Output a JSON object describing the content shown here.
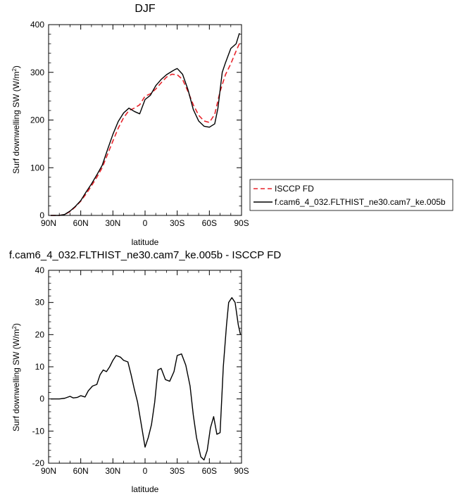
{
  "chart_data": [
    {
      "type": "line",
      "title": "DJF",
      "xlabel": "latitude",
      "ylabel": "Surf downwelling SW (W/m",
      "ylabel_sup": "2",
      "ylabel_close": ")",
      "xlim": [
        90,
        -90
      ],
      "ylim": [
        0,
        400
      ],
      "x_ticks": [
        90,
        60,
        30,
        0,
        -30,
        -60,
        -90
      ],
      "x_tick_labels": [
        "90N",
        "60N",
        "30N",
        "0",
        "30S",
        "60S",
        "90S"
      ],
      "y_ticks": [
        0,
        100,
        200,
        300,
        400
      ],
      "y_tick_labels": [
        "0",
        "100",
        "200",
        "300",
        "400"
      ],
      "legend_position": "right",
      "series": [
        {
          "name": "ISCCP FD",
          "color": "#e8242b",
          "dash": "dashed",
          "x": [
            88,
            80,
            75,
            70,
            65,
            60,
            55,
            50,
            45,
            40,
            35,
            30,
            25,
            20,
            15,
            10,
            5,
            0,
            -5,
            -10,
            -15,
            -20,
            -25,
            -30,
            -35,
            -40,
            -45,
            -50,
            -55,
            -60,
            -65,
            -70,
            -75,
            -80,
            -85,
            -88
          ],
          "y": [
            0,
            0,
            2,
            8,
            18,
            30,
            45,
            62,
            80,
            100,
            128,
            156,
            183,
            205,
            220,
            225,
            232,
            250,
            255,
            265,
            278,
            290,
            296,
            295,
            285,
            260,
            232,
            210,
            198,
            195,
            212,
            260,
            295,
            318,
            345,
            360
          ]
        },
        {
          "name": "f.cam6_4_032.FLTHIST_ne30.cam7_ke.005b",
          "color": "#000000",
          "dash": "solid",
          "x": [
            88,
            80,
            75,
            70,
            65,
            60,
            55,
            50,
            45,
            40,
            35,
            30,
            25,
            20,
            15,
            10,
            5,
            0,
            -5,
            -10,
            -15,
            -20,
            -25,
            -28,
            -30,
            -35,
            -40,
            -45,
            -50,
            -55,
            -60,
            -65,
            -68,
            -72,
            -75,
            -80,
            -85,
            -88
          ],
          "y": [
            0,
            0,
            2,
            9,
            19,
            31,
            49,
            66,
            85,
            105,
            138,
            170,
            197,
            215,
            225,
            218,
            213,
            243,
            252,
            272,
            285,
            295,
            302,
            306,
            308,
            296,
            264,
            222,
            198,
            187,
            185,
            192,
            225,
            300,
            320,
            350,
            360,
            382
          ]
        }
      ]
    },
    {
      "type": "line",
      "title": "f.cam6_4_032.FLTHIST_ne30.cam7_ke.005b - ISCCP FD",
      "xlabel": "latitude",
      "ylabel": "Surf downwelling SW (W/m",
      "ylabel_sup": "2",
      "ylabel_close": ")",
      "xlim": [
        90,
        -90
      ],
      "ylim": [
        -20,
        40
      ],
      "x_ticks": [
        90,
        60,
        30,
        0,
        -30,
        -60,
        -90
      ],
      "x_tick_labels": [
        "90N",
        "60N",
        "30N",
        "0",
        "30S",
        "60S",
        "90S"
      ],
      "y_ticks": [
        -20,
        -10,
        0,
        10,
        20,
        30,
        40
      ],
      "y_tick_labels": [
        "-20",
        "-10",
        "0",
        "10",
        "20",
        "30",
        "40"
      ],
      "series": [
        {
          "color": "#000000",
          "dash": "solid",
          "x": [
            88,
            80,
            75,
            70,
            67,
            63,
            60,
            56,
            53,
            49,
            45,
            42,
            39,
            36,
            33,
            30,
            27,
            23,
            20,
            16,
            13,
            10,
            7,
            4,
            0,
            -3,
            -6,
            -9,
            -12,
            -15,
            -19,
            -23,
            -27,
            -30,
            -34,
            -38,
            -42,
            -45,
            -48,
            -52,
            -55,
            -58,
            -61,
            -64,
            -67,
            -70,
            -73,
            -76,
            -78,
            -81,
            -84,
            -87,
            -89
          ],
          "y": [
            0,
            0,
            0.2,
            0.8,
            0.3,
            0.5,
            1.0,
            0.6,
            2.5,
            4.0,
            4.5,
            7.5,
            9.0,
            8.5,
            10.0,
            12.0,
            13.5,
            13.0,
            12.0,
            11.5,
            7.5,
            3.0,
            -1.0,
            -7.0,
            -15.0,
            -12.0,
            -8.0,
            -1.0,
            9.0,
            9.5,
            6.0,
            5.5,
            8.5,
            13.5,
            14.0,
            10.5,
            4.0,
            -5.0,
            -12.0,
            -18.0,
            -19.0,
            -16.0,
            -9.0,
            -5.5,
            -11.0,
            -10.5,
            10.0,
            23.0,
            30.0,
            31.5,
            30.0,
            23.0,
            20.0
          ]
        }
      ]
    }
  ]
}
